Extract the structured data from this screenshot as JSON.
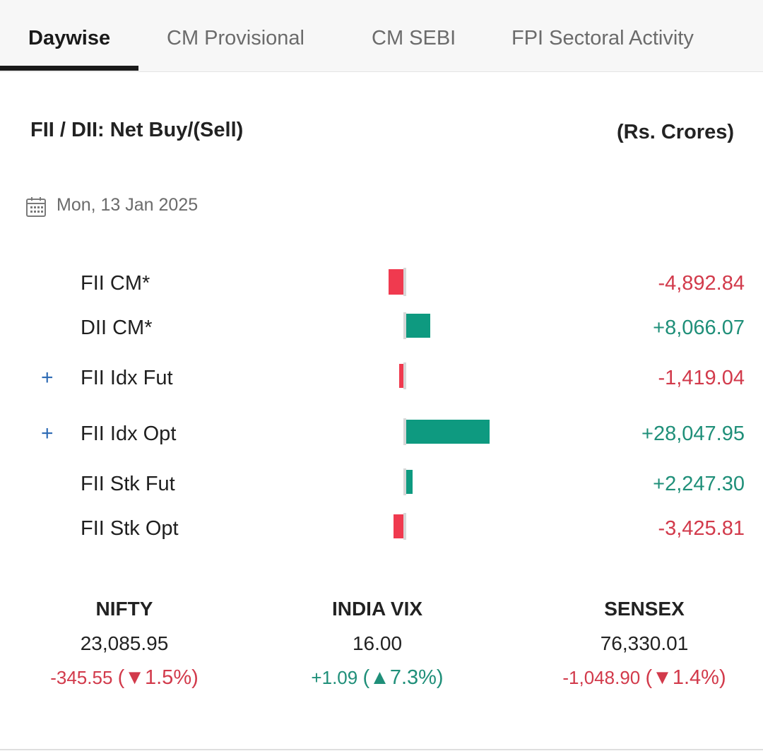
{
  "tabs": [
    {
      "label": "Daywise",
      "active": true
    },
    {
      "label": "CM Provisional",
      "active": false
    },
    {
      "label": "CM SEBI",
      "active": false
    },
    {
      "label": "FPI Sectoral Activity",
      "active": false
    }
  ],
  "header": {
    "title": "FII / DII: Net Buy/(Sell)",
    "unit": "(Rs. Crores)"
  },
  "date": {
    "icon": "calendar-icon",
    "text": "Mon, 13 Jan 2025"
  },
  "activity": {
    "rows": [
      {
        "label": "FII CM*",
        "value": -4892.84,
        "value_text": "-4,892.84",
        "expandable": false
      },
      {
        "label": "DII CM*",
        "value": 8066.07,
        "value_text": "+8,066.07",
        "expandable": false
      },
      {
        "label": "FII Idx Fut",
        "value": -1419.04,
        "value_text": "-1,419.04",
        "expandable": true
      },
      {
        "label": "FII Idx Opt",
        "value": 28047.95,
        "value_text": "+28,047.95",
        "expandable": true
      },
      {
        "label": "FII Stk Fut",
        "value": 2247.3,
        "value_text": "+2,247.30",
        "expandable": false
      },
      {
        "label": "FII Stk Opt",
        "value": -3425.81,
        "value_text": "-3,425.81",
        "expandable": false
      }
    ],
    "expand_symbol": "+"
  },
  "indices": [
    {
      "name": "NIFTY",
      "value": "23,085.95",
      "change": "-345.55",
      "percent": "(▼1.5%)",
      "direction": "down"
    },
    {
      "name": "INDIA VIX",
      "value": "16.00",
      "change": "+1.09",
      "percent": "(▲7.3%)",
      "direction": "up"
    },
    {
      "name": "SENSEX",
      "value": "76,330.01",
      "change": "-1,048.90",
      "percent": "(▼1.4%)",
      "direction": "down"
    }
  ],
  "colors": {
    "positive": "#0e9a80",
    "negative": "#f03a4f",
    "positive_text": "#1f8f79",
    "negative_text": "#d23a4b",
    "expand": "#2e6bb5"
  }
}
